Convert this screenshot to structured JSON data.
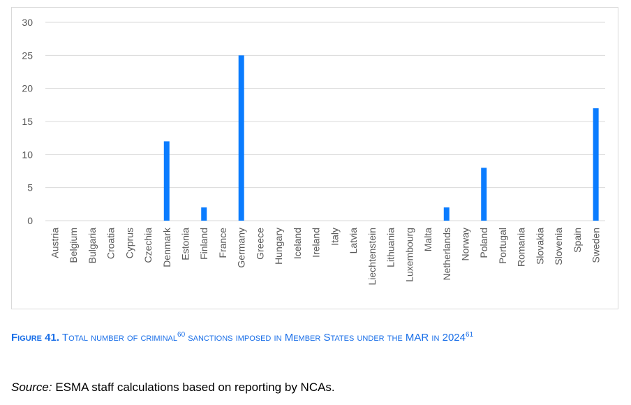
{
  "chart_data": {
    "type": "bar",
    "categories": [
      "Austria",
      "Belgium",
      "Bulgaria",
      "Croatia",
      "Cyprus",
      "Czechia",
      "Denmark",
      "Estonia",
      "Finland",
      "France",
      "Germany",
      "Greece",
      "Hungary",
      "Iceland",
      "Ireland",
      "Italy",
      "Latvia",
      "Liechtenstein",
      "Lithuania",
      "Luxembourg",
      "Malta",
      "Netherlands",
      "Norway",
      "Poland",
      "Portugal",
      "Romania",
      "Slovakia",
      "Slovenia",
      "Spain",
      "Sweden"
    ],
    "values": [
      0,
      0,
      0,
      0,
      0,
      0,
      12,
      0,
      2,
      0,
      25,
      0,
      0,
      0,
      0,
      0,
      0,
      0,
      0,
      0,
      0,
      2,
      0,
      8,
      0,
      0,
      0,
      0,
      0,
      17
    ],
    "ylim": [
      0,
      30
    ],
    "yticks": [
      0,
      5,
      10,
      15,
      20,
      25,
      30
    ],
    "grid": true,
    "bar_color": "#0a7cff",
    "grid_color": "#d9d9d9"
  },
  "caption": {
    "figure_label": "Figure 41.",
    "text_1": " Total number of criminal",
    "footnote_1": "60",
    "text_2": " sanctions imposed in Member States under the MAR in 2024",
    "footnote_2": "61"
  },
  "source": {
    "label": "Source:",
    "text": " ESMA staff calculations based on reporting by NCAs."
  }
}
